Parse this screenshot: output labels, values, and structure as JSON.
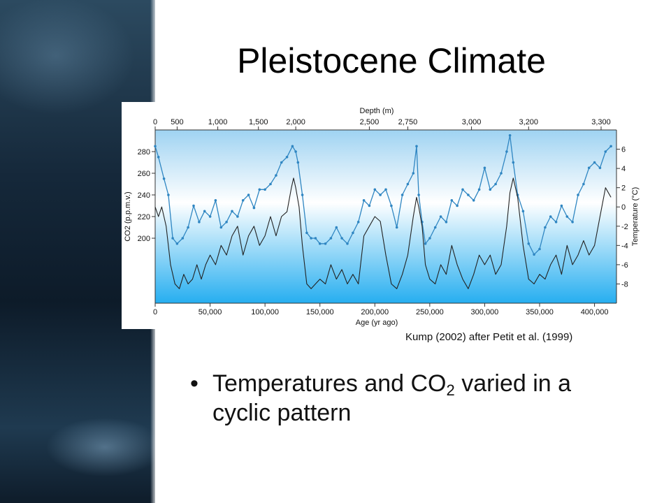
{
  "slide": {
    "title": "Pleistocene Climate",
    "citation": "Kump (2002) after Petit et al. (1999)",
    "bullet": {
      "text_before": "Temperatures and CO",
      "subscript": "2",
      "text_after": " varied in a cyclic pattern"
    }
  },
  "colors": {
    "co2_series": "#2f86c2",
    "temperature_series": "#222222",
    "plot_top": "#9fd3f2",
    "plot_middle": "#ffffff",
    "plot_bottom": "#26aef0"
  },
  "chart_data": {
    "type": "line",
    "title": "",
    "xlabel": "Age (yr ago)",
    "x_top_label": "Depth (m)",
    "ylabel_left": "CO2 (p.p.m.v.)",
    "ylabel_right": "Temperature (°C)",
    "xlim": [
      0,
      420000
    ],
    "ylim_left": [
      140,
      300
    ],
    "ylim_right": [
      -10,
      8
    ],
    "x_ticks": [
      0,
      50000,
      100000,
      150000,
      200000,
      250000,
      300000,
      350000,
      400000
    ],
    "x_tick_labels": [
      "0",
      "50,000",
      "100,000",
      "150,000",
      "200,000",
      "250,000",
      "300,000",
      "350,000",
      "400,000"
    ],
    "depth_ticks": [
      {
        "label": "0",
        "age": 0
      },
      {
        "label": "500",
        "age": 20000
      },
      {
        "label": "1,000",
        "age": 57000
      },
      {
        "label": "1,500",
        "age": 94000
      },
      {
        "label": "2,000",
        "age": 128000
      },
      {
        "label": "2,500",
        "age": 195000
      },
      {
        "label": "2,750",
        "age": 230000
      },
      {
        "label": "3,000",
        "age": 288000
      },
      {
        "label": "3,200",
        "age": 340000
      },
      {
        "label": "3,300",
        "age": 406000
      }
    ],
    "y_left_ticks": [
      200,
      220,
      240,
      260,
      280
    ],
    "y_right_ticks": [
      -8,
      -6,
      -4,
      -2,
      0,
      2,
      4,
      6
    ],
    "series": [
      {
        "axis": "left",
        "x": [
          0,
          3000,
          8000,
          12000,
          16000,
          20000,
          25000,
          30000,
          35000,
          40000,
          45000,
          50000,
          55000,
          60000,
          65000,
          70000,
          75000,
          80000,
          85000,
          90000,
          95000,
          100000,
          105000,
          110000,
          115000,
          120000,
          125000,
          128000,
          130000,
          134000,
          138000,
          142000,
          146000,
          150000,
          155000,
          160000,
          165000,
          170000,
          175000,
          180000,
          185000,
          190000,
          195000,
          200000,
          205000,
          210000,
          215000,
          220000,
          225000,
          230000,
          235000,
          238000,
          240000,
          243000,
          246000,
          250000,
          255000,
          260000,
          265000,
          270000,
          275000,
          280000,
          285000,
          290000,
          295000,
          300000,
          305000,
          310000,
          315000,
          320000,
          323000,
          326000,
          330000,
          335000,
          340000,
          345000,
          350000,
          355000,
          360000,
          365000,
          370000,
          375000,
          380000,
          385000,
          390000,
          395000,
          400000,
          405000,
          410000,
          415000
        ],
        "values": [
          285,
          275,
          255,
          240,
          200,
          195,
          200,
          210,
          230,
          215,
          225,
          220,
          235,
          210,
          215,
          225,
          220,
          235,
          240,
          228,
          245,
          245,
          250,
          258,
          270,
          275,
          285,
          280,
          270,
          240,
          205,
          200,
          200,
          195,
          195,
          200,
          210,
          200,
          195,
          205,
          215,
          235,
          230,
          245,
          240,
          245,
          230,
          210,
          240,
          250,
          260,
          285,
          240,
          215,
          195,
          200,
          210,
          220,
          215,
          235,
          230,
          245,
          240,
          235,
          245,
          265,
          245,
          250,
          260,
          280,
          295,
          270,
          240,
          225,
          195,
          185,
          190,
          210,
          220,
          215,
          230,
          220,
          215,
          240,
          250,
          265,
          270,
          265,
          280,
          285
        ]
      },
      {
        "axis": "right",
        "x": [
          0,
          3000,
          6000,
          10000,
          14000,
          18000,
          22000,
          26000,
          30000,
          34000,
          38000,
          42000,
          46000,
          50000,
          55000,
          60000,
          65000,
          70000,
          75000,
          80000,
          85000,
          90000,
          95000,
          100000,
          105000,
          110000,
          115000,
          120000,
          124000,
          126000,
          128000,
          131000,
          134000,
          138000,
          142000,
          146000,
          150000,
          155000,
          160000,
          165000,
          170000,
          175000,
          180000,
          185000,
          190000,
          195000,
          200000,
          205000,
          210000,
          215000,
          220000,
          225000,
          230000,
          235000,
          238000,
          240000,
          243000,
          246000,
          250000,
          255000,
          260000,
          265000,
          270000,
          275000,
          280000,
          285000,
          290000,
          295000,
          300000,
          305000,
          310000,
          315000,
          320000,
          323000,
          326000,
          330000,
          335000,
          340000,
          345000,
          350000,
          355000,
          360000,
          365000,
          370000,
          375000,
          380000,
          385000,
          390000,
          395000,
          400000,
          405000,
          410000,
          415000
        ],
        "values": [
          0,
          -1,
          0,
          -2,
          -6,
          -8,
          -8.5,
          -7,
          -8,
          -7.5,
          -6,
          -7.5,
          -6,
          -5,
          -6,
          -4,
          -5,
          -3,
          -2,
          -5,
          -3,
          -2,
          -4,
          -3,
          -1,
          -3,
          -1,
          -0.5,
          2,
          3,
          2,
          0,
          -4,
          -8,
          -8.5,
          -8,
          -7.5,
          -8,
          -6,
          -7.5,
          -6.5,
          -8,
          -7,
          -8,
          -3,
          -2,
          -1,
          -1.5,
          -5,
          -8,
          -8.5,
          -7,
          -5,
          -1,
          1,
          0,
          -2,
          -6,
          -7.5,
          -8,
          -6,
          -7,
          -4,
          -6,
          -7.5,
          -8.5,
          -7,
          -5,
          -6,
          -5,
          -7,
          -6,
          -2,
          1.5,
          3,
          1,
          -4,
          -7.5,
          -8,
          -7,
          -7.5,
          -6,
          -5,
          -7,
          -4,
          -6,
          -5,
          -3.5,
          -5,
          -4,
          -1,
          2,
          1
        ]
      }
    ]
  }
}
